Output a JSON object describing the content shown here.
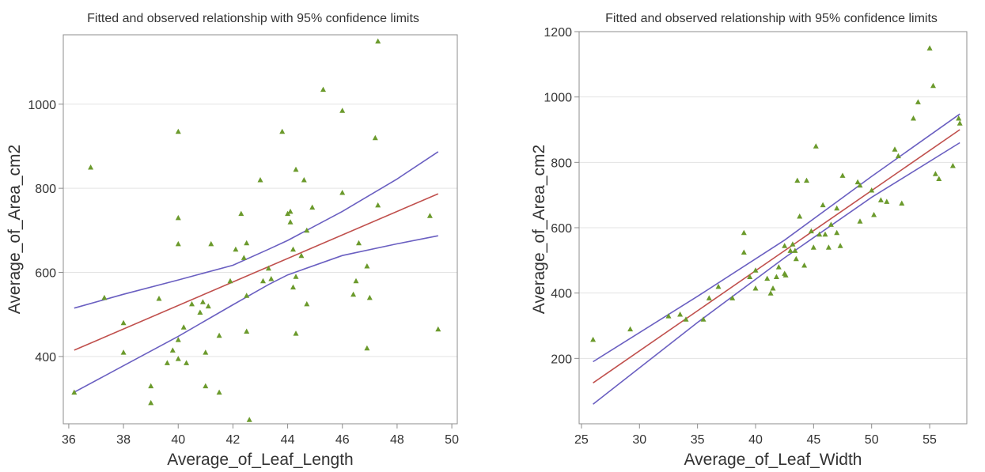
{
  "colors": {
    "points": "#6b9a2c",
    "fit": "#c0504d",
    "ci": "#6a5fc1",
    "grid": "#e3e3e3",
    "frame": "#8c8c8c",
    "text": "#333333"
  },
  "chart_data": [
    {
      "type": "scatter",
      "title": "Fitted and observed relationship with 95% confidence limits",
      "xlabel": "Average_of_Leaf_Length",
      "ylabel": "Average_of_Area_cm2",
      "xlim": [
        35.8,
        50.2
      ],
      "ylim": [
        240,
        1165
      ],
      "xticks": [
        36,
        38,
        40,
        42,
        44,
        46,
        48,
        50
      ],
      "yticks": [
        400,
        600,
        800,
        1000
      ],
      "grid": "horizontal",
      "points": [
        [
          36.2,
          315
        ],
        [
          36.8,
          850
        ],
        [
          37.3,
          540
        ],
        [
          38.0,
          480
        ],
        [
          38.0,
          410
        ],
        [
          39.0,
          330
        ],
        [
          39.0,
          290
        ],
        [
          39.3,
          538
        ],
        [
          39.6,
          385
        ],
        [
          39.8,
          415
        ],
        [
          40.0,
          935
        ],
        [
          40.0,
          730
        ],
        [
          40.0,
          668
        ],
        [
          40.0,
          440
        ],
        [
          40.0,
          395
        ],
        [
          40.2,
          470
        ],
        [
          40.3,
          385
        ],
        [
          40.5,
          525
        ],
        [
          40.8,
          505
        ],
        [
          40.9,
          530
        ],
        [
          41.0,
          410
        ],
        [
          41.0,
          330
        ],
        [
          41.1,
          520
        ],
        [
          41.2,
          668
        ],
        [
          41.5,
          450
        ],
        [
          41.5,
          315
        ],
        [
          41.9,
          580
        ],
        [
          42.1,
          655
        ],
        [
          42.3,
          740
        ],
        [
          42.4,
          635
        ],
        [
          42.5,
          670
        ],
        [
          42.5,
          545
        ],
        [
          42.5,
          460
        ],
        [
          42.6,
          250
        ],
        [
          43.0,
          820
        ],
        [
          43.1,
          580
        ],
        [
          43.3,
          610
        ],
        [
          43.4,
          585
        ],
        [
          43.8,
          935
        ],
        [
          44.0,
          740
        ],
        [
          44.1,
          745
        ],
        [
          44.1,
          720
        ],
        [
          44.2,
          655
        ],
        [
          44.2,
          565
        ],
        [
          44.3,
          845
        ],
        [
          44.3,
          590
        ],
        [
          44.3,
          455
        ],
        [
          44.5,
          640
        ],
        [
          44.6,
          820
        ],
        [
          44.7,
          700
        ],
        [
          44.7,
          525
        ],
        [
          44.9,
          755
        ],
        [
          45.3,
          1035
        ],
        [
          46.0,
          985
        ],
        [
          46.0,
          790
        ],
        [
          46.4,
          548
        ],
        [
          46.5,
          580
        ],
        [
          46.6,
          670
        ],
        [
          46.9,
          615
        ],
        [
          46.9,
          420
        ],
        [
          47.0,
          540
        ],
        [
          47.2,
          920
        ],
        [
          47.3,
          1150
        ],
        [
          47.3,
          760
        ],
        [
          49.2,
          735
        ],
        [
          49.5,
          465
        ]
      ],
      "fit": [
        [
          36.2,
          415
        ],
        [
          49.5,
          787
        ]
      ],
      "ci_upper": [
        [
          36.2,
          515
        ],
        [
          38,
          548
        ],
        [
          40,
          582
        ],
        [
          42,
          617
        ],
        [
          43.3,
          655
        ],
        [
          44,
          676
        ],
        [
          46,
          745
        ],
        [
          48,
          822
        ],
        [
          49.5,
          887
        ]
      ],
      "ci_lower": [
        [
          36.2,
          315
        ],
        [
          38,
          378
        ],
        [
          40,
          448
        ],
        [
          42,
          523
        ],
        [
          43.3,
          571
        ],
        [
          44,
          594
        ],
        [
          46,
          640
        ],
        [
          48,
          668
        ],
        [
          49.5,
          687
        ]
      ]
    },
    {
      "type": "scatter",
      "title": "Fitted and observed relationship with 95% confidence limits",
      "xlabel": "Average_of_Leaf_Width",
      "ylabel": "Average_of_Area_cm2",
      "xlim": [
        24.8,
        58.2
      ],
      "ylim": [
        0,
        1200
      ],
      "xticks": [
        25,
        30,
        35,
        40,
        45,
        50,
        55
      ],
      "yticks": [
        200,
        400,
        600,
        800,
        1000,
        1200
      ],
      "grid": "horizontal",
      "points": [
        [
          26.0,
          258
        ],
        [
          29.2,
          290
        ],
        [
          32.5,
          330
        ],
        [
          33.5,
          335
        ],
        [
          34.0,
          320
        ],
        [
          35.5,
          320
        ],
        [
          36.0,
          385
        ],
        [
          36.8,
          420
        ],
        [
          38.0,
          385
        ],
        [
          39.0,
          585
        ],
        [
          39.0,
          525
        ],
        [
          39.5,
          450
        ],
        [
          40.0,
          470
        ],
        [
          40.0,
          415
        ],
        [
          41.0,
          445
        ],
        [
          41.3,
          400
        ],
        [
          41.5,
          415
        ],
        [
          41.8,
          450
        ],
        [
          42.0,
          480
        ],
        [
          42.5,
          545
        ],
        [
          42.5,
          460
        ],
        [
          42.6,
          455
        ],
        [
          43.0,
          530
        ],
        [
          43.2,
          550
        ],
        [
          43.4,
          530
        ],
        [
          43.5,
          505
        ],
        [
          43.6,
          745
        ],
        [
          43.8,
          635
        ],
        [
          44.2,
          485
        ],
        [
          44.4,
          745
        ],
        [
          44.8,
          590
        ],
        [
          45.0,
          540
        ],
        [
          45.2,
          850
        ],
        [
          45.5,
          580
        ],
        [
          45.8,
          670
        ],
        [
          46.0,
          580
        ],
        [
          46.3,
          540
        ],
        [
          46.5,
          610
        ],
        [
          47.0,
          660
        ],
        [
          47.0,
          585
        ],
        [
          47.3,
          545
        ],
        [
          47.5,
          760
        ],
        [
          48.8,
          740
        ],
        [
          49.0,
          730
        ],
        [
          49.0,
          620
        ],
        [
          50.0,
          715
        ],
        [
          50.2,
          640
        ],
        [
          50.8,
          685
        ],
        [
          51.3,
          680
        ],
        [
          52.0,
          840
        ],
        [
          52.3,
          820
        ],
        [
          52.6,
          675
        ],
        [
          53.6,
          935
        ],
        [
          54.0,
          985
        ],
        [
          55.0,
          1150
        ],
        [
          55.3,
          1035
        ],
        [
          55.5,
          765
        ],
        [
          55.8,
          750
        ],
        [
          57.0,
          790
        ],
        [
          57.5,
          935
        ],
        [
          57.6,
          920
        ]
      ],
      "fit": [
        [
          26.0,
          125
        ],
        [
          57.6,
          900
        ]
      ],
      "ci_upper": [
        [
          26.0,
          190
        ],
        [
          35,
          390
        ],
        [
          42.5,
          562
        ],
        [
          50,
          757
        ],
        [
          57.6,
          948
        ]
      ],
      "ci_lower": [
        [
          26.0,
          60
        ],
        [
          35,
          310
        ],
        [
          42.5,
          508
        ],
        [
          50,
          693
        ],
        [
          57.6,
          860
        ]
      ]
    }
  ]
}
